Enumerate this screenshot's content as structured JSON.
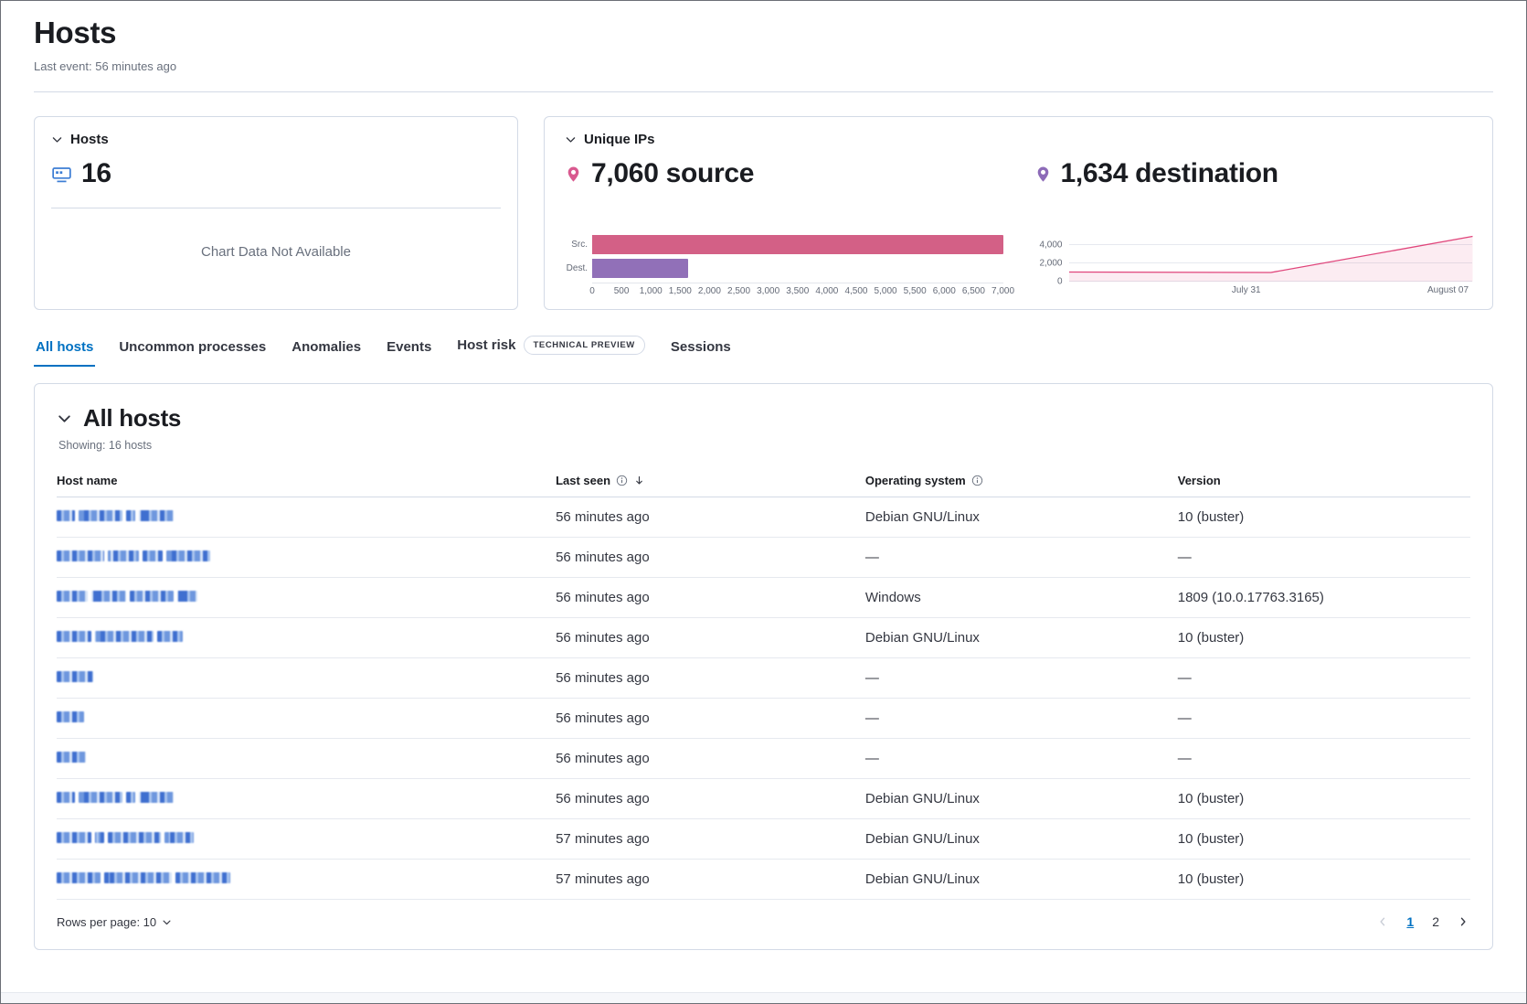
{
  "page": {
    "title": "Hosts",
    "last_event": "Last event: 56 minutes ago"
  },
  "kpi_hosts": {
    "title": "Hosts",
    "count": "16",
    "empty_message": "Chart Data Not Available"
  },
  "unique_ips": {
    "title": "Unique IPs",
    "source_label": "7,060 source",
    "destination_label": "1,634 destination"
  },
  "chart_data": [
    {
      "type": "bar",
      "title": "Unique source and destination IPs",
      "orientation": "horizontal",
      "categories": [
        "Src.",
        "Dest."
      ],
      "values": [
        7060,
        1634
      ],
      "colors": [
        "#d36086",
        "#9170b8"
      ],
      "xlim": [
        0,
        7000
      ],
      "xticks": [
        "0",
        "500",
        "1,000",
        "1,500",
        "2,000",
        "2,500",
        "3,000",
        "3,500",
        "4,000",
        "4,500",
        "5,000",
        "5,500",
        "6,000",
        "6,500",
        "7,000"
      ]
    },
    {
      "type": "line",
      "title": "Unique IPs over time",
      "color": "#e0457b",
      "fill": "rgba(224,69,123,0.10)",
      "ylim": [
        0,
        5000
      ],
      "yticks": [
        {
          "label": "4,000",
          "value": 4000
        },
        {
          "label": "2,000",
          "value": 2000
        },
        {
          "label": "0",
          "value": 0
        }
      ],
      "xticks": [
        {
          "label": "July 31",
          "pos": 0.44
        },
        {
          "label": "August 07",
          "pos": 0.94
        }
      ],
      "points": [
        {
          "x": 0,
          "y": 1050
        },
        {
          "x": 0.5,
          "y": 1000
        },
        {
          "x": 1,
          "y": 4950
        }
      ]
    }
  ],
  "tabs": {
    "items": [
      {
        "label": "All hosts",
        "active": true
      },
      {
        "label": "Uncommon processes",
        "active": false
      },
      {
        "label": "Anomalies",
        "active": false
      },
      {
        "label": "Events",
        "active": false
      },
      {
        "label": "Host risk",
        "active": false,
        "badge": "TECHNICAL PREVIEW"
      },
      {
        "label": "Sessions",
        "active": false
      }
    ]
  },
  "all_hosts": {
    "title": "All hosts",
    "showing": "Showing: 16 hosts",
    "columns": [
      {
        "label": "Host name"
      },
      {
        "label": "Last seen",
        "info": true,
        "sorted": "desc"
      },
      {
        "label": "Operating system",
        "info": true
      },
      {
        "label": "Version"
      }
    ],
    "rows": [
      {
        "redacted_name_widths": [
          20,
          48,
          10,
          38
        ],
        "last_seen": "56 minutes ago",
        "os": "Debian GNU/Linux",
        "version": "10 (buster)"
      },
      {
        "redacted_name_widths": [
          52,
          34,
          22,
          48
        ],
        "last_seen": "56 minutes ago",
        "os": "—",
        "version": "—"
      },
      {
        "redacted_name_widths": [
          34,
          38,
          48,
          22
        ],
        "last_seen": "56 minutes ago",
        "os": "Windows",
        "version": "1809 (10.0.17763.3165)"
      },
      {
        "redacted_name_widths": [
          38,
          64,
          28
        ],
        "last_seen": "56 minutes ago",
        "os": "Debian GNU/Linux",
        "version": "10 (buster)"
      },
      {
        "redacted_name_widths": [
          40
        ],
        "last_seen": "56 minutes ago",
        "os": "—",
        "version": "—"
      },
      {
        "redacted_name_widths": [
          30
        ],
        "last_seen": "56 minutes ago",
        "os": "—",
        "version": "—"
      },
      {
        "redacted_name_widths": [
          32
        ],
        "last_seen": "56 minutes ago",
        "os": "—",
        "version": "—"
      },
      {
        "redacted_name_widths": [
          20,
          48,
          10,
          38
        ],
        "last_seen": "56 minutes ago",
        "os": "Debian GNU/Linux",
        "version": "10 (buster)"
      },
      {
        "redacted_name_widths": [
          38,
          10,
          58,
          32
        ],
        "last_seen": "57 minutes ago",
        "os": "Debian GNU/Linux",
        "version": "10 (buster)"
      },
      {
        "redacted_name_widths": [
          48,
          74,
          60
        ],
        "last_seen": "57 minutes ago",
        "os": "Debian GNU/Linux",
        "version": "10 (buster)"
      }
    ],
    "footer": {
      "rows_per_page": "Rows per page: 10",
      "pages": [
        "1",
        "2"
      ],
      "active_page": "1"
    }
  }
}
